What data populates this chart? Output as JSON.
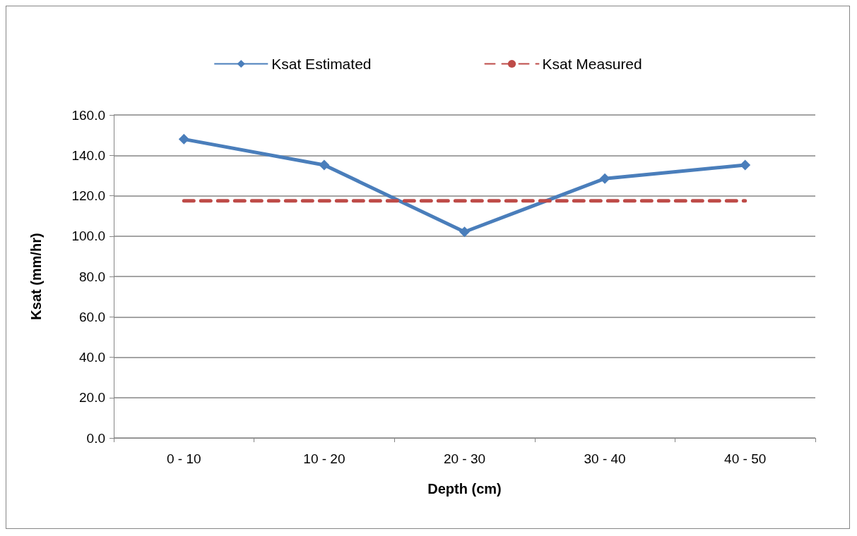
{
  "chart_data": {
    "type": "line",
    "xlabel": "Depth (cm)",
    "ylabel": "Ksat (mm/hr)",
    "categories": [
      "0 - 10",
      "10 - 20",
      "20 - 30",
      "30 - 40",
      "40 - 50"
    ],
    "series": [
      {
        "name": "Ksat Estimated",
        "color": "#4a7ebb",
        "values": [
          148,
          135.2,
          102.1,
          128.5,
          135.2
        ],
        "marker": "diamond",
        "line_style": "solid"
      },
      {
        "name": "Ksat Measured",
        "color": "#be4b48",
        "values": [
          117.5,
          117.5,
          117.5,
          117.5,
          117.5
        ],
        "marker": "none",
        "line_style": "dashed"
      }
    ],
    "ylim": [
      0,
      160
    ],
    "yticks": [
      {
        "value": 0,
        "label": "0.0"
      },
      {
        "value": 20,
        "label": "20.0"
      },
      {
        "value": 40,
        "label": "40.0"
      },
      {
        "value": 60,
        "label": "60.0"
      },
      {
        "value": 80,
        "label": "80.0"
      },
      {
        "value": 100,
        "label": "100.0"
      },
      {
        "value": 120,
        "label": "120.0"
      },
      {
        "value": 140,
        "label": "140.0"
      },
      {
        "value": 160,
        "label": "160.0"
      }
    ],
    "grid": "y",
    "legend": "top"
  }
}
